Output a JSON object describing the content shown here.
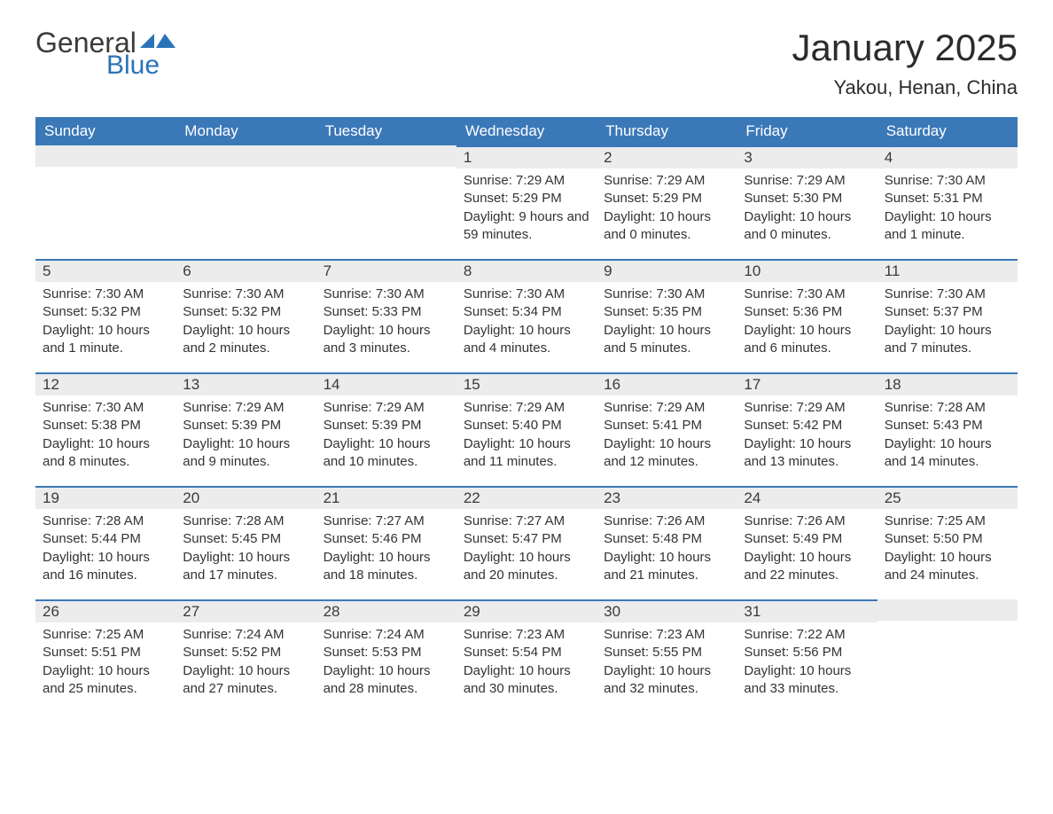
{
  "logo": {
    "text_general": "General",
    "text_blue": "Blue",
    "flag_color": "#2b73b8"
  },
  "title": "January 2025",
  "location": "Yakou, Henan, China",
  "header_bg": "#3b78b8",
  "daynum_bg": "#ececec",
  "border_top_color": "#3b78b8",
  "text_color": "#333333",
  "weekdays": [
    "Sunday",
    "Monday",
    "Tuesday",
    "Wednesday",
    "Thursday",
    "Friday",
    "Saturday"
  ],
  "weeks": [
    [
      null,
      null,
      null,
      {
        "n": "1",
        "sr": "7:29 AM",
        "ss": "5:29 PM",
        "dl": "9 hours and 59 minutes."
      },
      {
        "n": "2",
        "sr": "7:29 AM",
        "ss": "5:29 PM",
        "dl": "10 hours and 0 minutes."
      },
      {
        "n": "3",
        "sr": "7:29 AM",
        "ss": "5:30 PM",
        "dl": "10 hours and 0 minutes."
      },
      {
        "n": "4",
        "sr": "7:30 AM",
        "ss": "5:31 PM",
        "dl": "10 hours and 1 minute."
      }
    ],
    [
      {
        "n": "5",
        "sr": "7:30 AM",
        "ss": "5:32 PM",
        "dl": "10 hours and 1 minute."
      },
      {
        "n": "6",
        "sr": "7:30 AM",
        "ss": "5:32 PM",
        "dl": "10 hours and 2 minutes."
      },
      {
        "n": "7",
        "sr": "7:30 AM",
        "ss": "5:33 PM",
        "dl": "10 hours and 3 minutes."
      },
      {
        "n": "8",
        "sr": "7:30 AM",
        "ss": "5:34 PM",
        "dl": "10 hours and 4 minutes."
      },
      {
        "n": "9",
        "sr": "7:30 AM",
        "ss": "5:35 PM",
        "dl": "10 hours and 5 minutes."
      },
      {
        "n": "10",
        "sr": "7:30 AM",
        "ss": "5:36 PM",
        "dl": "10 hours and 6 minutes."
      },
      {
        "n": "11",
        "sr": "7:30 AM",
        "ss": "5:37 PM",
        "dl": "10 hours and 7 minutes."
      }
    ],
    [
      {
        "n": "12",
        "sr": "7:30 AM",
        "ss": "5:38 PM",
        "dl": "10 hours and 8 minutes."
      },
      {
        "n": "13",
        "sr": "7:29 AM",
        "ss": "5:39 PM",
        "dl": "10 hours and 9 minutes."
      },
      {
        "n": "14",
        "sr": "7:29 AM",
        "ss": "5:39 PM",
        "dl": "10 hours and 10 minutes."
      },
      {
        "n": "15",
        "sr": "7:29 AM",
        "ss": "5:40 PM",
        "dl": "10 hours and 11 minutes."
      },
      {
        "n": "16",
        "sr": "7:29 AM",
        "ss": "5:41 PM",
        "dl": "10 hours and 12 minutes."
      },
      {
        "n": "17",
        "sr": "7:29 AM",
        "ss": "5:42 PM",
        "dl": "10 hours and 13 minutes."
      },
      {
        "n": "18",
        "sr": "7:28 AM",
        "ss": "5:43 PM",
        "dl": "10 hours and 14 minutes."
      }
    ],
    [
      {
        "n": "19",
        "sr": "7:28 AM",
        "ss": "5:44 PM",
        "dl": "10 hours and 16 minutes."
      },
      {
        "n": "20",
        "sr": "7:28 AM",
        "ss": "5:45 PM",
        "dl": "10 hours and 17 minutes."
      },
      {
        "n": "21",
        "sr": "7:27 AM",
        "ss": "5:46 PM",
        "dl": "10 hours and 18 minutes."
      },
      {
        "n": "22",
        "sr": "7:27 AM",
        "ss": "5:47 PM",
        "dl": "10 hours and 20 minutes."
      },
      {
        "n": "23",
        "sr": "7:26 AM",
        "ss": "5:48 PM",
        "dl": "10 hours and 21 minutes."
      },
      {
        "n": "24",
        "sr": "7:26 AM",
        "ss": "5:49 PM",
        "dl": "10 hours and 22 minutes."
      },
      {
        "n": "25",
        "sr": "7:25 AM",
        "ss": "5:50 PM",
        "dl": "10 hours and 24 minutes."
      }
    ],
    [
      {
        "n": "26",
        "sr": "7:25 AM",
        "ss": "5:51 PM",
        "dl": "10 hours and 25 minutes."
      },
      {
        "n": "27",
        "sr": "7:24 AM",
        "ss": "5:52 PM",
        "dl": "10 hours and 27 minutes."
      },
      {
        "n": "28",
        "sr": "7:24 AM",
        "ss": "5:53 PM",
        "dl": "10 hours and 28 minutes."
      },
      {
        "n": "29",
        "sr": "7:23 AM",
        "ss": "5:54 PM",
        "dl": "10 hours and 30 minutes."
      },
      {
        "n": "30",
        "sr": "7:23 AM",
        "ss": "5:55 PM",
        "dl": "10 hours and 32 minutes."
      },
      {
        "n": "31",
        "sr": "7:22 AM",
        "ss": "5:56 PM",
        "dl": "10 hours and 33 minutes."
      },
      null
    ]
  ],
  "labels": {
    "sunrise": "Sunrise: ",
    "sunset": "Sunset: ",
    "daylight": "Daylight: "
  }
}
